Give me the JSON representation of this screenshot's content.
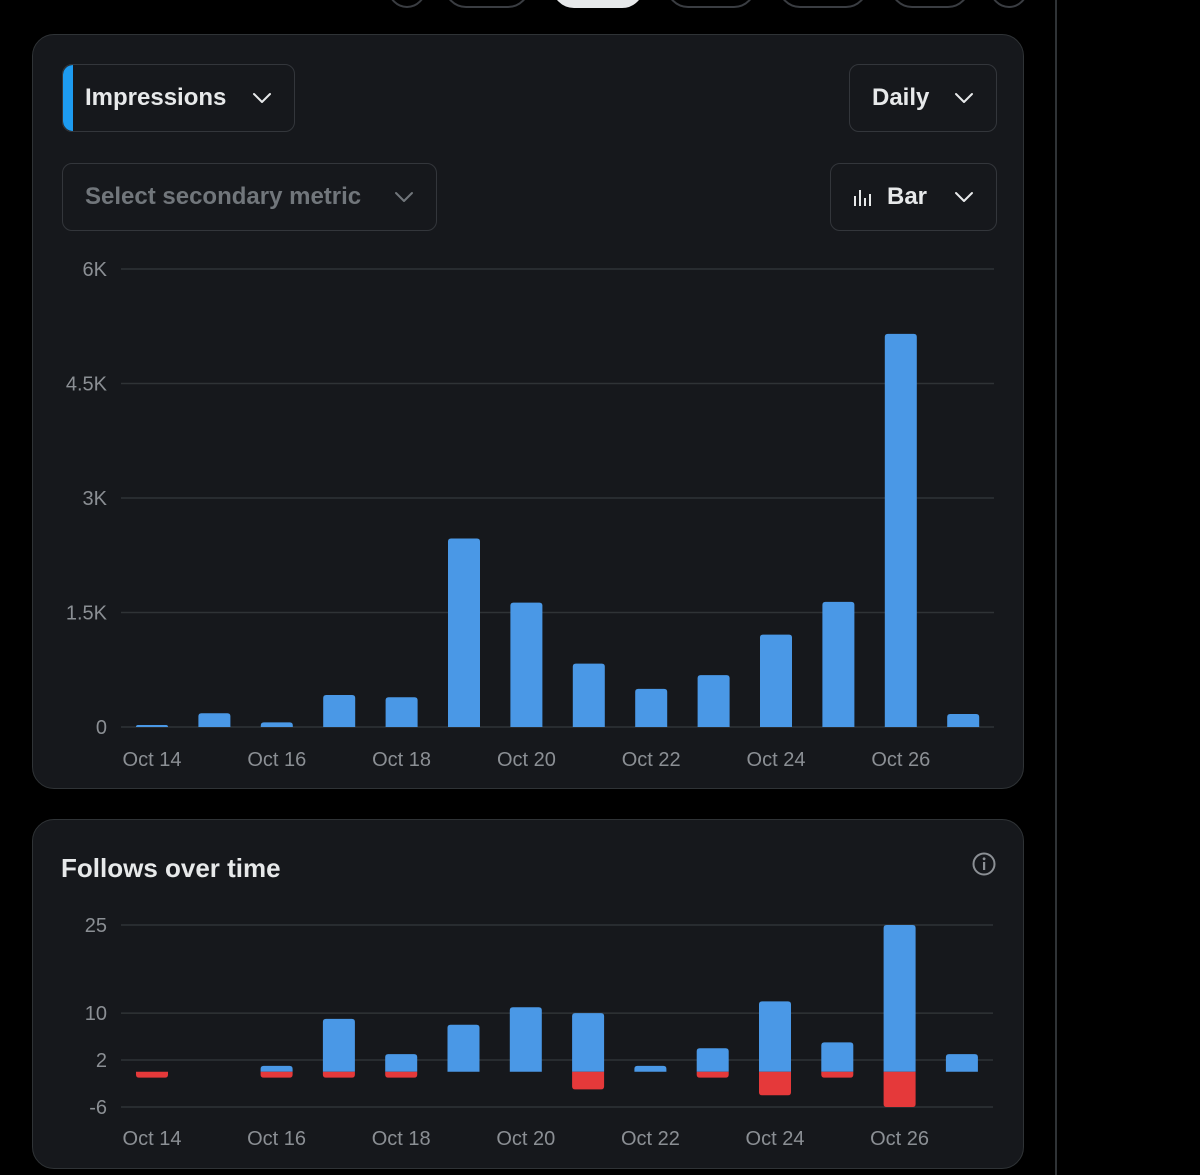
{
  "colors": {
    "blue": "#4a98e6",
    "red": "#e5393a",
    "grid": "#2f3336",
    "tick": "#8b8f94",
    "card": "#16181c",
    "accent": "#1d9bf0"
  },
  "impressions_card": {
    "metric_dropdown": {
      "label": "Impressions",
      "icon": "chevron-down-icon"
    },
    "period_dropdown": {
      "label": "Daily",
      "icon": "chevron-down-icon"
    },
    "secondary_dropdown": {
      "placeholder": "Select secondary metric",
      "icon": "chevron-down-icon"
    },
    "type_dropdown": {
      "label": "Bar",
      "icon": "bar-chart-icon"
    }
  },
  "follows_card": {
    "title": "Follows over time",
    "info_icon": "info-icon"
  },
  "chart_data": [
    {
      "type": "bar",
      "categories": [
        "Oct 14",
        "Oct 15",
        "Oct 16",
        "Oct 17",
        "Oct 18",
        "Oct 19",
        "Oct 20",
        "Oct 21",
        "Oct 22",
        "Oct 23",
        "Oct 24",
        "Oct 25",
        "Oct 26",
        "Oct 27"
      ],
      "x_tick_labels": [
        "Oct 14",
        "Oct 16",
        "Oct 18",
        "Oct 20",
        "Oct 22",
        "Oct 24",
        "Oct 26"
      ],
      "series": [
        {
          "name": "Impressions",
          "values": [
            20,
            180,
            60,
            420,
            390,
            2470,
            1630,
            830,
            500,
            680,
            1210,
            1640,
            5150,
            170
          ]
        }
      ],
      "ylim": [
        0,
        6000
      ],
      "y_ticks": [
        0,
        1500,
        3000,
        4500,
        6000
      ],
      "y_tick_labels": [
        "0",
        "1.5K",
        "3K",
        "4.5K",
        "6K"
      ],
      "grid": true
    },
    {
      "type": "bar",
      "title": "Follows over time",
      "categories": [
        "Oct 14",
        "Oct 15",
        "Oct 16",
        "Oct 17",
        "Oct 18",
        "Oct 19",
        "Oct 20",
        "Oct 21",
        "Oct 22",
        "Oct 23",
        "Oct 24",
        "Oct 25",
        "Oct 26",
        "Oct 27"
      ],
      "x_tick_labels": [
        "Oct 14",
        "Oct 16",
        "Oct 18",
        "Oct 20",
        "Oct 22",
        "Oct 24",
        "Oct 26"
      ],
      "series": [
        {
          "values": [
            0,
            0,
            1,
            9,
            3,
            8,
            11,
            10,
            1,
            4,
            12,
            5,
            25,
            3
          ]
        },
        {
          "values": [
            -1,
            0,
            -1,
            -1,
            -1,
            0,
            0,
            -3,
            0,
            -1,
            -4,
            -1,
            -6,
            0
          ]
        }
      ],
      "ylim": [
        -6,
        25
      ],
      "y_ticks": [
        -6,
        2,
        10,
        25
      ],
      "y_tick_labels": [
        "-6",
        "2",
        "10",
        "25"
      ],
      "grid": true
    }
  ]
}
